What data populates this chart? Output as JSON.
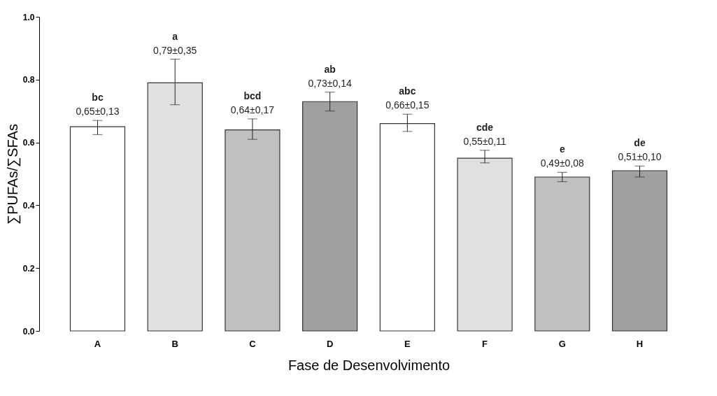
{
  "chart_data": {
    "type": "bar",
    "xlabel": "Fase de Desenvolvimento",
    "ylabel": "∑PUFAs/∑SFAs",
    "categories": [
      "A",
      "B",
      "C",
      "D",
      "E",
      "F",
      "G",
      "H"
    ],
    "values": [
      0.65,
      0.79,
      0.64,
      0.73,
      0.66,
      0.55,
      0.49,
      0.51
    ],
    "colors": [
      "#ffffff",
      "#e0e0e0",
      "#c0c0c0",
      "#a0a0a0",
      "#ffffff",
      "#e0e0e0",
      "#c0c0c0",
      "#a0a0a0"
    ],
    "errors": [
      [
        0.625,
        0.67
      ],
      [
        0.72,
        0.865
      ],
      [
        0.61,
        0.675
      ],
      [
        0.7,
        0.76
      ],
      [
        0.635,
        0.69
      ],
      [
        0.535,
        0.575
      ],
      [
        0.475,
        0.505
      ],
      [
        0.49,
        0.525
      ]
    ],
    "value_labels": [
      "0,65±0,13",
      "0,79±0,35",
      "0,64±0,17",
      "0,73±0,14",
      "0,66±0,15",
      "0,55±0,11",
      "0,49±0,08",
      "0,51±0,10"
    ],
    "annotations": [
      {
        "text": "bc",
        "x": "A",
        "y": 0.67
      },
      {
        "text": "a",
        "x": "B",
        "y": 0.865
      },
      {
        "text": "bcd",
        "x": "C",
        "y": 0.675
      },
      {
        "text": "ab",
        "x": "D",
        "y": 0.76
      },
      {
        "text": "abc",
        "x": "E",
        "y": 0.69
      },
      {
        "text": "cde",
        "x": "F",
        "y": 0.575
      },
      {
        "text": "e",
        "x": "G",
        "y": 0.505
      },
      {
        "text": "de",
        "x": "H",
        "y": 0.525
      }
    ],
    "ylim": [
      0,
      1.0
    ],
    "yticks": [
      {
        "value": 0,
        "label": "0.0"
      },
      {
        "value": 0.2,
        "label": "0.2"
      },
      {
        "value": 0.4,
        "label": "0.4"
      },
      {
        "value": 0.6,
        "label": "0.6"
      },
      {
        "value": 0.8,
        "label": "0.8"
      },
      {
        "value": 1.0,
        "label": "1.0"
      }
    ],
    "grid": false
  }
}
